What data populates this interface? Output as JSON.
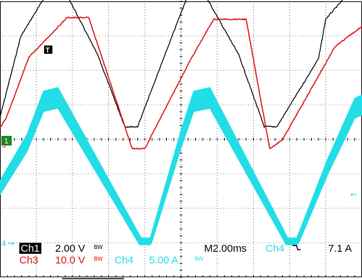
{
  "chart_data": {
    "type": "line",
    "grid": true,
    "divisions": {
      "x": 10,
      "y": 8
    },
    "time_per_div_ms": 2.0,
    "channels": [
      {
        "id": "ch1",
        "label": "Ch1",
        "scale": "2.00 V",
        "bw": "BW",
        "color": "#000000"
      },
      {
        "id": "ch3",
        "label": "Ch3",
        "scale": "10.0 V",
        "bw": "BW",
        "color": "#e01010"
      },
      {
        "id": "ch4",
        "label": "Ch4",
        "scale": "5.00 A",
        "bw": "BW",
        "color": "#22dde6"
      }
    ],
    "series": [
      {
        "channel": "ch1",
        "unit": "V",
        "x_ms": [
          0,
          1.15,
          2.9,
          3.4,
          5.4,
          6.9,
          7.6,
          9.0,
          10.6,
          11.0,
          13.2,
          14.6,
          15.3,
          17.6,
          18.0,
          19.7,
          20.0
        ],
        "y": [
          0.8,
          5.5,
          8.5,
          8.5,
          4.4,
          0.25,
          0.25,
          4.1,
          8.5,
          8.5,
          4.4,
          0.25,
          0.25,
          4.2,
          6.5,
          8.5,
          8.5
        ]
      },
      {
        "channel": "ch3",
        "unit": "V",
        "x_ms": [
          0,
          0.35,
          1.6,
          3.7,
          4.9,
          7.3,
          8.0,
          10.5,
          11.8,
          13.6,
          14.9,
          15.6,
          18.5,
          20.0
        ],
        "y": [
          3.5,
          6.5,
          24.0,
          35.5,
          35.5,
          -2.5,
          -2.5,
          23.0,
          35.0,
          35.0,
          -2.5,
          0,
          27.0,
          33.0
        ]
      },
      {
        "channel": "ch4",
        "unit": "A",
        "x_ms": [
          0,
          1.5,
          2.4,
          3.2,
          7.8,
          8.3,
          10.0,
          10.7,
          11.6,
          15.9,
          16.4,
          18.1,
          19.6,
          20.0
        ],
        "y": [
          8.0,
          14.5,
          20.5,
          21.0,
          0,
          0,
          15.0,
          20.5,
          21.0,
          0,
          0,
          11.0,
          19.5,
          20.0
        ]
      }
    ],
    "readouts": {
      "timebase": "M2.00ms",
      "trigger_source": "Ch4",
      "trigger_slope_icon": "falling-edge-icon",
      "trigger_level": "7.1 A"
    },
    "markers": {
      "ch1_ground": "1",
      "ch3_ground": "3",
      "ch4_ground": "4",
      "trigger_position": "T",
      "trigger_level_arrow": "←"
    }
  }
}
